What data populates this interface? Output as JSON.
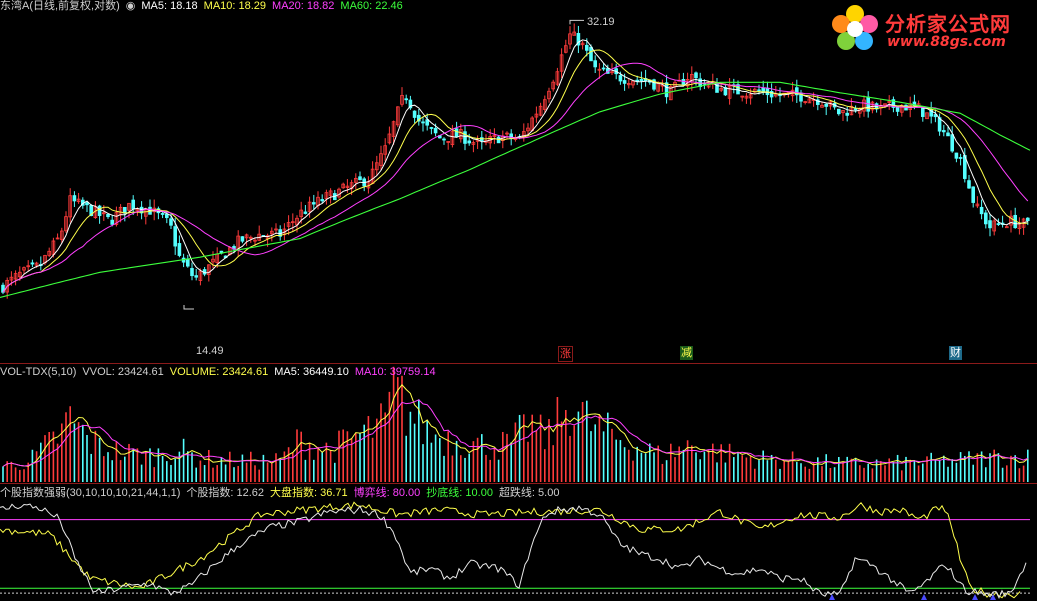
{
  "panel_main": {
    "title": "东湾A(日线,前复权,对数)",
    "ma5": "MA5: 18.18",
    "ma10": "MA10: 18.29",
    "ma20": "MA20: 18.82",
    "ma60": "MA60: 22.46",
    "high_label": "32.19",
    "low_label": "14.49",
    "event_tags": [
      "涨",
      "减",
      "财"
    ]
  },
  "panel_vol": {
    "title": "VOL-TDX(5,10)",
    "vvol": "VVOL: 23424.61",
    "volume": "VOLUME: 23424.61",
    "ma5": "MA5: 36449.10",
    "ma10": "MA10: 39759.14"
  },
  "panel_ind": {
    "title": "个股指数强弱(30,10,10,10,21,44,1,1)",
    "stock_index": "个股指数: 12.62",
    "market_index": "大盘指数: 36.71",
    "game_line": "博弈线: 80.00",
    "bottom_line": "抄底线: 10.00",
    "oversold_line": "超跌线: 5.00"
  },
  "logo": {
    "title": "分析家公式网",
    "url": "www.88gs.com"
  },
  "colors": {
    "up": "#ff3b3b",
    "down": "#54ffff",
    "ma5": "#ffffff",
    "ma10": "#ffff4c",
    "ma20": "#ff40ff",
    "ma60": "#3cff3c",
    "grid": "#8b1a1a"
  },
  "chart_data": [
    {
      "type": "line",
      "name": "price",
      "high": 32.19,
      "low": 14.49,
      "ma_last": {
        "MA5": 18.18,
        "MA10": 18.29,
        "MA20": 18.82,
        "MA60": 22.46
      },
      "close_keypoints": [
        [
          0,
          15.2
        ],
        [
          20,
          15.8
        ],
        [
          40,
          16.2
        ],
        [
          60,
          17.6
        ],
        [
          70,
          19.5
        ],
        [
          90,
          19.0
        ],
        [
          110,
          18.4
        ],
        [
          130,
          19.3
        ],
        [
          150,
          19.0
        ],
        [
          170,
          18.2
        ],
        [
          180,
          16.5
        ],
        [
          195,
          15.6
        ],
        [
          215,
          16.4
        ],
        [
          240,
          17.4
        ],
        [
          260,
          17.7
        ],
        [
          280,
          17.7
        ],
        [
          300,
          18.8
        ],
        [
          320,
          19.5
        ],
        [
          350,
          20.3
        ],
        [
          370,
          20.8
        ],
        [
          385,
          22.5
        ],
        [
          395,
          24.5
        ],
        [
          405,
          26.5
        ],
        [
          420,
          24.3
        ],
        [
          440,
          23.3
        ],
        [
          460,
          23.5
        ],
        [
          480,
          22.8
        ],
        [
          500,
          23.4
        ],
        [
          520,
          23.2
        ],
        [
          540,
          25.5
        ],
        [
          555,
          28.0
        ],
        [
          570,
          31.2
        ],
        [
          580,
          30.7
        ],
        [
          595,
          28.3
        ],
        [
          610,
          27.8
        ],
        [
          630,
          27.6
        ],
        [
          650,
          27.4
        ],
        [
          670,
          26.5
        ],
        [
          690,
          27.9
        ],
        [
          700,
          27.3
        ],
        [
          720,
          26.8
        ],
        [
          740,
          26.6
        ],
        [
          760,
          26.6
        ],
        [
          780,
          26.3
        ],
        [
          800,
          26.3
        ],
        [
          820,
          26.0
        ],
        [
          840,
          25.0
        ],
        [
          860,
          25.6
        ],
        [
          880,
          25.3
        ],
        [
          900,
          25.6
        ],
        [
          920,
          25.3
        ],
        [
          940,
          24.1
        ],
        [
          960,
          22.0
        ],
        [
          975,
          19.2
        ],
        [
          990,
          18.1
        ],
        [
          1010,
          18.4
        ],
        [
          1025,
          18.2
        ]
      ],
      "ma60_keypoints": [
        [
          0,
          14.8
        ],
        [
          100,
          15.9
        ],
        [
          200,
          16.6
        ],
        [
          300,
          17.5
        ],
        [
          400,
          19.6
        ],
        [
          470,
          21.3
        ],
        [
          530,
          23.0
        ],
        [
          600,
          25.1
        ],
        [
          660,
          26.4
        ],
        [
          720,
          27.3
        ],
        [
          780,
          27.3
        ],
        [
          840,
          26.5
        ],
        [
          900,
          25.8
        ],
        [
          960,
          25.0
        ],
        [
          1000,
          23.5
        ],
        [
          1030,
          22.5
        ]
      ]
    },
    {
      "type": "bar",
      "name": "volume",
      "VVOL": 23424.61,
      "VOLUME": 23424.61,
      "MA5": 36449.1,
      "MA10": 39759.14,
      "keypoints": [
        [
          0,
          15000
        ],
        [
          30,
          20000
        ],
        [
          60,
          45000
        ],
        [
          70,
          60000
        ],
        [
          90,
          38000
        ],
        [
          120,
          28000
        ],
        [
          150,
          25000
        ],
        [
          180,
          30000
        ],
        [
          200,
          22000
        ],
        [
          240,
          20000
        ],
        [
          280,
          20000
        ],
        [
          300,
          40000
        ],
        [
          330,
          30000
        ],
        [
          360,
          45000
        ],
        [
          385,
          55000
        ],
        [
          395,
          90000
        ],
        [
          405,
          70000
        ],
        [
          430,
          45000
        ],
        [
          460,
          40000
        ],
        [
          480,
          35000
        ],
        [
          510,
          35000
        ],
        [
          530,
          55000
        ],
        [
          545,
          40000
        ],
        [
          560,
          60000
        ],
        [
          570,
          75000
        ],
        [
          590,
          55000
        ],
        [
          620,
          40000
        ],
        [
          660,
          25000
        ],
        [
          690,
          35000
        ],
        [
          720,
          28000
        ],
        [
          760,
          22000
        ],
        [
          800,
          20000
        ],
        [
          850,
          17000
        ],
        [
          900,
          18000
        ],
        [
          950,
          20000
        ],
        [
          1000,
          24000
        ],
        [
          1030,
          23000
        ]
      ]
    },
    {
      "type": "line",
      "name": "个股指数强弱",
      "个股指数": 12.62,
      "大盘指数": 36.71,
      "博弈线": 80.0,
      "抄底线": 10.0,
      "超跌线": 5.0,
      "ylim": [
        0,
        100
      ],
      "stock_keypoints": [
        [
          0,
          90
        ],
        [
          20,
          95
        ],
        [
          40,
          92
        ],
        [
          60,
          80
        ],
        [
          75,
          40
        ],
        [
          95,
          5
        ],
        [
          120,
          10
        ],
        [
          150,
          15
        ],
        [
          170,
          5
        ],
        [
          190,
          12
        ],
        [
          210,
          30
        ],
        [
          240,
          55
        ],
        [
          270,
          72
        ],
        [
          300,
          78
        ],
        [
          330,
          88
        ],
        [
          360,
          90
        ],
        [
          380,
          85
        ],
        [
          395,
          65
        ],
        [
          410,
          25
        ],
        [
          430,
          30
        ],
        [
          450,
          20
        ],
        [
          470,
          35
        ],
        [
          500,
          30
        ],
        [
          520,
          12
        ],
        [
          530,
          50
        ],
        [
          545,
          85
        ],
        [
          560,
          90
        ],
        [
          580,
          92
        ],
        [
          600,
          85
        ],
        [
          620,
          55
        ],
        [
          640,
          45
        ],
        [
          660,
          40
        ],
        [
          680,
          30
        ],
        [
          700,
          40
        ],
        [
          720,
          30
        ],
        [
          740,
          25
        ],
        [
          760,
          30
        ],
        [
          780,
          20
        ],
        [
          800,
          20
        ],
        [
          820,
          4
        ],
        [
          840,
          3
        ],
        [
          855,
          40
        ],
        [
          870,
          35
        ],
        [
          890,
          20
        ],
        [
          910,
          4
        ],
        [
          925,
          15
        ],
        [
          945,
          35
        ],
        [
          965,
          8
        ],
        [
          985,
          4
        ],
        [
          1010,
          4
        ],
        [
          1028,
          40
        ]
      ],
      "market_keypoints": [
        [
          0,
          70
        ],
        [
          50,
          65
        ],
        [
          90,
          20
        ],
        [
          140,
          10
        ],
        [
          200,
          40
        ],
        [
          260,
          85
        ],
        [
          320,
          92
        ],
        [
          360,
          95
        ],
        [
          400,
          85
        ],
        [
          440,
          90
        ],
        [
          480,
          85
        ],
        [
          540,
          88
        ],
        [
          600,
          90
        ],
        [
          640,
          70
        ],
        [
          680,
          70
        ],
        [
          720,
          88
        ],
        [
          760,
          70
        ],
        [
          800,
          85
        ],
        [
          840,
          82
        ],
        [
          860,
          95
        ],
        [
          880,
          88
        ],
        [
          900,
          90
        ],
        [
          920,
          80
        ],
        [
          940,
          93
        ],
        [
          950,
          80
        ],
        [
          960,
          40
        ],
        [
          970,
          10
        ],
        [
          990,
          4
        ],
        [
          1020,
          4
        ]
      ]
    }
  ]
}
